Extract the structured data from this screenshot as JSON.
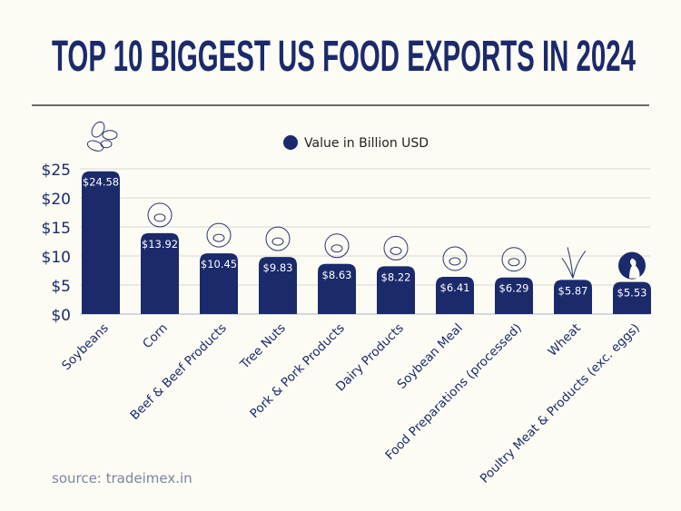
{
  "title": "TOP 10 BIGGEST US FOOD EXPORTS IN 2024",
  "source": "source: tradeimex.in",
  "colors": {
    "bar": "#1b2a6b",
    "background": "#fcfbf4",
    "grid": "#e4e4e0",
    "text": "#1b2a6b"
  },
  "chart_data": {
    "type": "bar",
    "title": "TOP 10 BIGGEST US FOOD EXPORTS IN 2024",
    "legend": {
      "label": "Value in Billion USD",
      "placement": "top-center"
    },
    "categories": [
      "Soybeans",
      "Corn",
      "Beef & Beef Products",
      "Tree Nuts",
      "Pork & Pork Products",
      "Dairy Products",
      "Soybean Meal",
      "Food Preparations (processed)",
      "Wheat",
      "Poultry Meat & Products (exc. eggs)"
    ],
    "series": [
      {
        "name": "Value in Billion USD",
        "values": [
          24.58,
          13.92,
          10.45,
          9.83,
          8.63,
          8.22,
          6.41,
          6.29,
          5.87,
          5.53
        ]
      }
    ],
    "data_labels": [
      "$24.58",
      "$13.92",
      "$10.45",
      "$9.83",
      "$8.63",
      "$8.22",
      "$6.41",
      "$6.29",
      "$5.87",
      "$5.53"
    ],
    "icons": [
      "beans-icon",
      "corn-icon",
      "cow-icon",
      "nuts-icon",
      "pig-icon",
      "dairy-icon",
      "plate-icon",
      "cooking-pot-icon",
      "wheat-icon",
      "chicken-icon"
    ],
    "yticks": [
      "$0",
      "$5",
      "$10",
      "$15",
      "$20",
      "$25"
    ],
    "ytick_values": [
      0,
      5,
      10,
      15,
      20,
      25
    ],
    "ylim": [
      0,
      25
    ],
    "grid": true,
    "xlabel": "",
    "ylabel": ""
  }
}
